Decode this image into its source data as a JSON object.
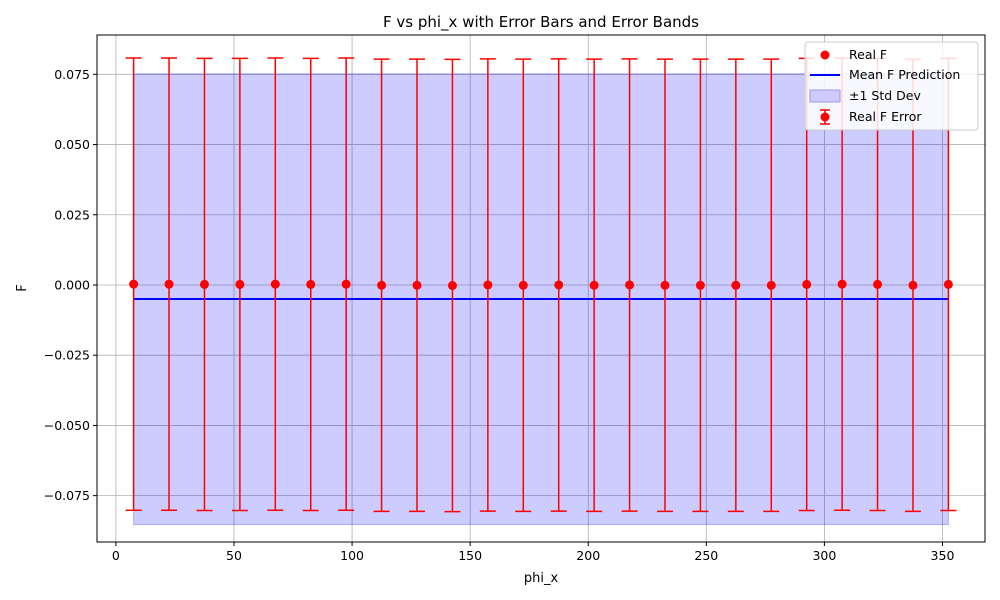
{
  "chart_data": {
    "type": "scatter",
    "title": "F vs phi_x with Error Bars and Error Bands",
    "xlabel": "phi_x",
    "ylabel": "F",
    "xlim": [
      -8,
      368
    ],
    "ylim": [
      -0.0915,
      0.089
    ],
    "xticks": [
      0,
      50,
      100,
      150,
      200,
      250,
      300,
      350
    ],
    "yticks": [
      -0.075,
      -0.05,
      -0.025,
      0.0,
      0.025,
      0.05,
      0.075
    ],
    "xtick_labels": [
      "0",
      "50",
      "100",
      "150",
      "200",
      "250",
      "300",
      "350"
    ],
    "ytick_labels": [
      "−0.075",
      "−0.050",
      "−0.025",
      "0.000",
      "0.025",
      "0.050",
      "0.075"
    ],
    "grid": true,
    "legend_position": "top-right",
    "x": [
      7.5,
      22.5,
      37.5,
      52.5,
      67.5,
      82.5,
      97.5,
      112.5,
      127.5,
      142.5,
      157.5,
      172.5,
      187.5,
      202.5,
      217.5,
      232.5,
      247.5,
      262.5,
      277.5,
      292.5,
      307.5,
      322.5,
      337.5,
      352.5
    ],
    "series": [
      {
        "name": "Real F",
        "kind": "points",
        "color": "#ff0000",
        "values": [
          0.0003,
          0.0003,
          0.0002,
          0.0002,
          0.0003,
          0.0002,
          0.0003,
          -0.0001,
          -0.0001,
          -0.0002,
          0.0,
          -0.0001,
          0.0,
          -0.0001,
          0.0,
          -0.0001,
          -0.0001,
          -0.0001,
          -0.0001,
          0.0002,
          0.0003,
          0.0002,
          -0.0001,
          0.0002
        ]
      },
      {
        "name": "Mean F Prediction",
        "kind": "line",
        "color": "#0000ff",
        "values": [
          -0.005,
          -0.005,
          -0.005,
          -0.005,
          -0.005,
          -0.005,
          -0.005,
          -0.005,
          -0.005,
          -0.005,
          -0.005,
          -0.005,
          -0.005,
          -0.005,
          -0.005,
          -0.005,
          -0.005,
          -0.005,
          -0.005,
          -0.005,
          -0.005,
          -0.005,
          -0.005,
          -0.005
        ]
      },
      {
        "name": "±1 Std Dev",
        "kind": "band",
        "color": "#0000ff",
        "lower": -0.0853,
        "upper": 0.0752
      },
      {
        "name": "Real F Error",
        "kind": "errorbar",
        "color": "#ff0000",
        "yerr": 0.0805
      }
    ]
  }
}
